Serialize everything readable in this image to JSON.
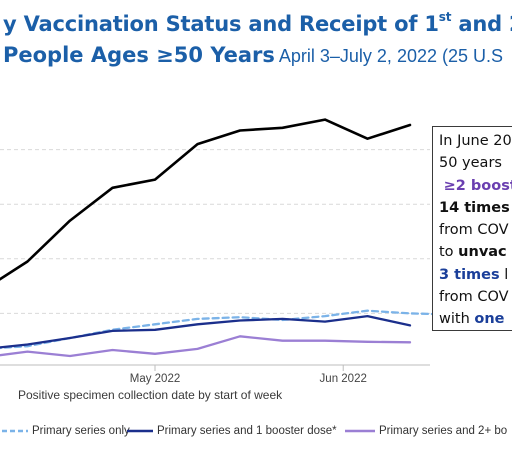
{
  "title": {
    "line1_pre": "y Vaccination Status and Receipt of 1",
    "line1_sup": "st",
    "line1_post": " and 2",
    "line2_main": "People Ages ≥50 Years",
    "line2_sub": " April 3–July 2, 2022 (25 U.S"
  },
  "callout": {
    "l1": "In June 20",
    "l2": "50 years",
    "l3": "≥2 boost",
    "l4": "14 times",
    "l5": "from COV",
    "l6_pre": "to ",
    "l6_bold": "unvac",
    "l7_bold": "3 times",
    "l7_post": " l",
    "l8": "from COV",
    "l9_pre": "with ",
    "l9_bold": "one"
  },
  "colors": {
    "unvaccinated": "#000000",
    "primary_only": "#7bb3e8",
    "one_booster": "#1b2f8c",
    "two_booster": "#9b7fd4",
    "gridline": "#d9d9d9",
    "title": "#1b5fa8"
  },
  "chart_data": {
    "type": "line",
    "x": [
      "2022-04-03",
      "2022-04-10",
      "2022-04-17",
      "2022-04-24",
      "2022-05-01",
      "2022-05-08",
      "2022-05-15",
      "2022-05-22",
      "2022-05-29",
      "2022-06-05",
      "2022-06-12",
      "2022-06-19",
      "2022-06-26",
      "2022-07-02"
    ],
    "ylim": [
      0,
      5
    ],
    "gridlines_y": [
      1,
      2,
      3,
      4
    ],
    "grid": "horizontal dashed",
    "x_ticks": [
      {
        "x": "2022-05-01",
        "label": "May 2022"
      },
      {
        "x": "2022-06-01",
        "label": "Jun 2022"
      }
    ],
    "xlabel": "Positive specimen collection date by start of week",
    "series": [
      {
        "name": "",
        "color_key": "unvaccinated",
        "style": "solid",
        "values": [
          1.45,
          1.95,
          2.7,
          3.3,
          3.45,
          4.1,
          4.35,
          4.4,
          4.55,
          4.2,
          4.45,
          null,
          null,
          null
        ],
        "x_index_start": 0
      },
      {
        "name": "Primary series only",
        "color_key": "primary_only",
        "style": "dashed",
        "values": [
          0.35,
          0.4,
          0.55,
          0.7,
          0.8,
          0.9,
          0.93,
          0.88,
          0.95,
          1.05,
          1.0,
          0.98,
          null,
          null
        ]
      },
      {
        "name": "Primary series and 1 booster dose*",
        "color_key": "one_booster",
        "style": "solid",
        "values": [
          0.35,
          0.43,
          0.55,
          0.68,
          0.7,
          0.8,
          0.87,
          0.9,
          0.85,
          0.95,
          0.78,
          null,
          null,
          null
        ]
      },
      {
        "name": "Primary series and 2+ bo",
        "color_key": "two_booster",
        "style": "solid",
        "values": [
          0.2,
          0.3,
          0.22,
          0.33,
          0.26,
          0.35,
          0.58,
          0.5,
          0.5,
          0.48,
          0.47,
          null,
          null,
          null
        ]
      }
    ]
  },
  "legend": {
    "items": [
      {
        "label": "Primary series only",
        "color_key": "primary_only",
        "style": "dashed"
      },
      {
        "label": "Primary series and 1 booster dose*",
        "color_key": "one_booster",
        "style": "solid"
      },
      {
        "label": "Primary series and 2+ bo",
        "color_key": "two_booster",
        "style": "solid"
      }
    ]
  }
}
